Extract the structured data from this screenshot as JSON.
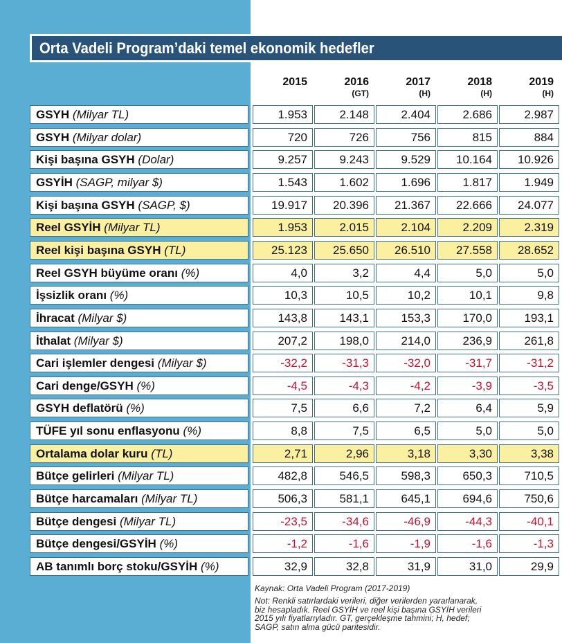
{
  "title": "Orta Vadeli Program’daki temel ekonomik hedefler",
  "columns": [
    {
      "year": "2015",
      "sub": ""
    },
    {
      "year": "2016",
      "sub": "(GT)"
    },
    {
      "year": "2017",
      "sub": "(H)"
    },
    {
      "year": "2018",
      "sub": "(H)"
    },
    {
      "year": "2019",
      "sub": "(H)"
    }
  ],
  "rows": [
    {
      "name": "GSYH",
      "unit": "(Milyar TL)",
      "values": [
        "1.953",
        "2.148",
        "2.404",
        "2.686",
        "2.987"
      ],
      "highlight": false
    },
    {
      "name": "GSYH",
      "unit": "(Milyar dolar)",
      "values": [
        "720",
        "726",
        "756",
        "815",
        "884"
      ],
      "highlight": false
    },
    {
      "name": "Kişi başına GSYH",
      "unit": "(Dolar)",
      "values": [
        "9.257",
        "9.243",
        "9.529",
        "10.164",
        "10.926"
      ],
      "highlight": false
    },
    {
      "name": "GSYİH",
      "unit": "(SAGP, milyar $)",
      "values": [
        "1.543",
        "1.602",
        "1.696",
        "1.817",
        "1.949"
      ],
      "highlight": false
    },
    {
      "name": "Kişi başına GSYH",
      "unit": "(SAGP, $)",
      "values": [
        "19.917",
        "20.396",
        "21.367",
        "22.666",
        "24.077"
      ],
      "highlight": false
    },
    {
      "name": "Reel GSYİH",
      "unit": "(Milyar TL)",
      "values": [
        "1.953",
        "2.015",
        "2.104",
        "2.209",
        "2.319"
      ],
      "highlight": true
    },
    {
      "name": "Reel kişi başına GSYH",
      "unit": "(TL)",
      "values": [
        "25.123",
        "25.650",
        "26.510",
        "27.558",
        "28.652"
      ],
      "highlight": true
    },
    {
      "name": "Reel GSYH büyüme oranı",
      "unit": "(%)",
      "values": [
        "4,0",
        "3,2",
        "4,4",
        "5,0",
        "5,0"
      ],
      "highlight": false
    },
    {
      "name": "İşsizlik oranı",
      "unit": "(%)",
      "values": [
        "10,3",
        "10,5",
        "10,2",
        "10,1",
        "9,8"
      ],
      "highlight": false
    },
    {
      "name": "İhracat",
      "unit": "(Milyar $)",
      "values": [
        "143,8",
        "143,1",
        "153,3",
        "170,0",
        "193,1"
      ],
      "highlight": false
    },
    {
      "name": "İthalat",
      "unit": "(Milyar $)",
      "values": [
        "207,2",
        "198,0",
        "214,0",
        "236,9",
        "261,8"
      ],
      "highlight": false
    },
    {
      "name": "Cari işlemler dengesi",
      "unit": "(Milyar $)",
      "values": [
        "-32,2",
        "-31,3",
        "-32,0",
        "-31,7",
        "-31,2"
      ],
      "highlight": false
    },
    {
      "name": "Cari denge/GSYH",
      "unit": "(%)",
      "values": [
        "-4,5",
        "-4,3",
        "-4,2",
        "-3,9",
        "-3,5"
      ],
      "highlight": false
    },
    {
      "name": "GSYH deflatörü",
      "unit": "(%)",
      "values": [
        "7,5",
        "6,6",
        "7,2",
        "6,4",
        "5,9"
      ],
      "highlight": false
    },
    {
      "name": "TÜFE yıl sonu enflasyonu",
      "unit": "(%)",
      "values": [
        "8,8",
        "7,5",
        "6,5",
        "5,0",
        "5,0"
      ],
      "highlight": false
    },
    {
      "name": "Ortalama dolar kuru",
      "unit": "(TL)",
      "values": [
        "2,71",
        "2,96",
        "3,18",
        "3,30",
        "3,38"
      ],
      "highlight": true
    },
    {
      "name": "Bütçe gelirleri",
      "unit": "(Milyar TL)",
      "values": [
        "482,8",
        "546,5",
        "598,3",
        "650,3",
        "710,5"
      ],
      "highlight": false
    },
    {
      "name": "Bütçe harcamaları",
      "unit": "(Milyar TL)",
      "values": [
        "506,3",
        "581,1",
        "645,1",
        "694,6",
        "750,6"
      ],
      "highlight": false
    },
    {
      "name": "Bütçe dengesi",
      "unit": "(Milyar TL)",
      "values": [
        "-23,5",
        "-34,6",
        "-46,9",
        "-44,3",
        "-40,1"
      ],
      "highlight": false
    },
    {
      "name": "Bütçe dengesi/GSYİH",
      "unit": "(%)",
      "values": [
        "-1,2",
        "-1,6",
        "-1,9",
        "-1,6",
        "-1,3"
      ],
      "highlight": false
    },
    {
      "name": "AB tanımlı borç stoku/GSYİH",
      "unit": "(%)",
      "values": [
        "32,9",
        "32,8",
        "31,9",
        "31,0",
        "29,9"
      ],
      "highlight": false
    }
  ],
  "source": "Kaynak: Orta Vadeli Program (2017-2019)",
  "note_lines": [
    "Not: Renkli satırlardaki verileri, diğer verilerden yararlanarak,",
    "biz hesapladık. Reel GSYİH ve reel kişi başına GSYİH verileri",
    "2015 yılı fiyatlarıyladır. GT, gerçekleşme tahmini; H, hedef;",
    "SAGP, satın alma gücü paritesidir."
  ],
  "colors": {
    "panel": "#5aaed3",
    "title_bg": "#2a5379",
    "highlight": "#fbefa0",
    "negative": "#c8102e"
  }
}
